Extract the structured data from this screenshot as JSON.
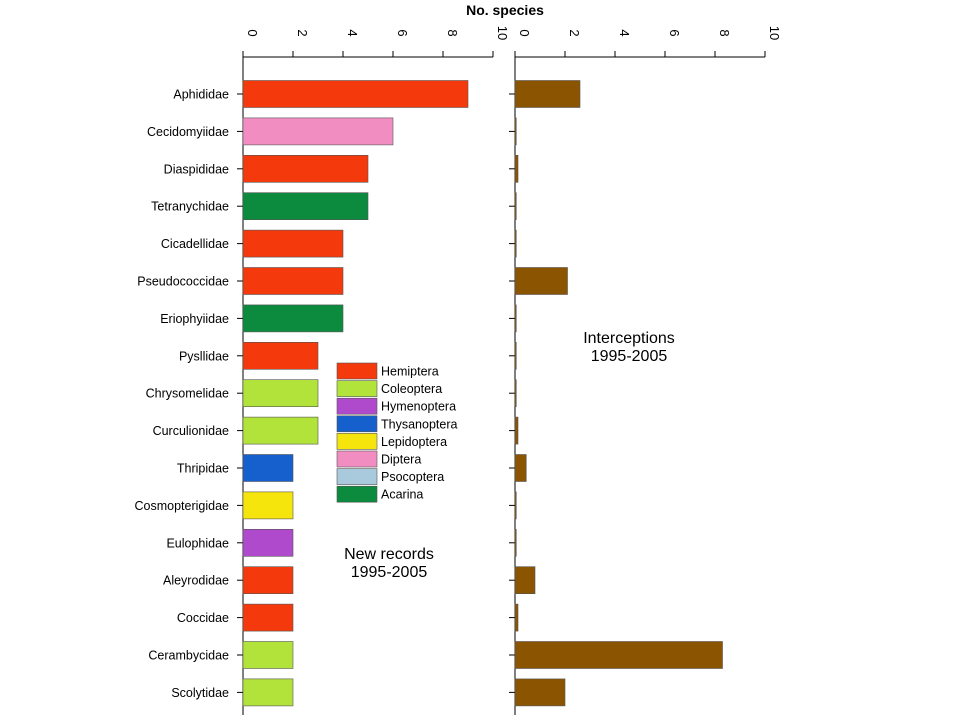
{
  "chart_data": {
    "type": "bar",
    "orientation": "horizontal",
    "title": "No. species",
    "categories": [
      "Aphididae",
      "Cecidomyiidae",
      "Diaspididae",
      "Tetranychidae",
      "Cicadellidae",
      "Pseudococcidae",
      "Eriophyiidae",
      "Pysllidae",
      "Chrysomelidae",
      "Curculionidae",
      "Thripidae",
      "Cosmopterigidae",
      "Eulophidae",
      "Aleyrodidae",
      "Coccidae",
      "Cerambycidae",
      "Scolytidae"
    ],
    "panels": [
      {
        "name": "New records 1995-2005",
        "label_lines": [
          "New records",
          "1995-2005"
        ],
        "xlim": [
          0,
          10
        ],
        "ticks": [
          "0",
          "2",
          "4",
          "6",
          "8",
          "10"
        ],
        "values": [
          9,
          6,
          5,
          5,
          4,
          4,
          4,
          3,
          3,
          3,
          2,
          2,
          2,
          2,
          2,
          2,
          2
        ],
        "orders": [
          "Hemiptera",
          "Diptera",
          "Hemiptera",
          "Acarina",
          "Hemiptera",
          "Hemiptera",
          "Acarina",
          "Hemiptera",
          "Coleoptera",
          "Coleoptera",
          "Thysanoptera",
          "Lepidoptera",
          "Hymenoptera",
          "Hemiptera",
          "Hemiptera",
          "Coleoptera",
          "Coleoptera"
        ]
      },
      {
        "name": "Interceptions 1995-2005",
        "label_lines": [
          "Interceptions",
          "1995-2005"
        ],
        "xlim": [
          0,
          10
        ],
        "ticks": [
          "0",
          "2",
          "4",
          "6",
          "8",
          "10"
        ],
        "values": [
          2.6,
          0.05,
          0.12,
          0.05,
          0.05,
          2.1,
          0.05,
          0.05,
          0.05,
          0.12,
          0.45,
          0.05,
          0.05,
          0.8,
          0.12,
          8.3,
          2.0
        ],
        "color": "#8B5400"
      }
    ],
    "legend": {
      "placement": "center",
      "items": [
        {
          "label": "Hemiptera",
          "color": "#F43A0D"
        },
        {
          "label": "Coleoptera",
          "color": "#B2E33A"
        },
        {
          "label": "Hymenoptera",
          "color": "#B04ACD"
        },
        {
          "label": "Thysanoptera",
          "color": "#1560CC"
        },
        {
          "label": "Lepidoptera",
          "color": "#F5E50D"
        },
        {
          "label": "Diptera",
          "color": "#F28DC2"
        },
        {
          "label": "Psocoptera",
          "color": "#A9C9DD"
        },
        {
          "label": "Acarina",
          "color": "#0C8A3E"
        }
      ]
    },
    "grid": false
  }
}
